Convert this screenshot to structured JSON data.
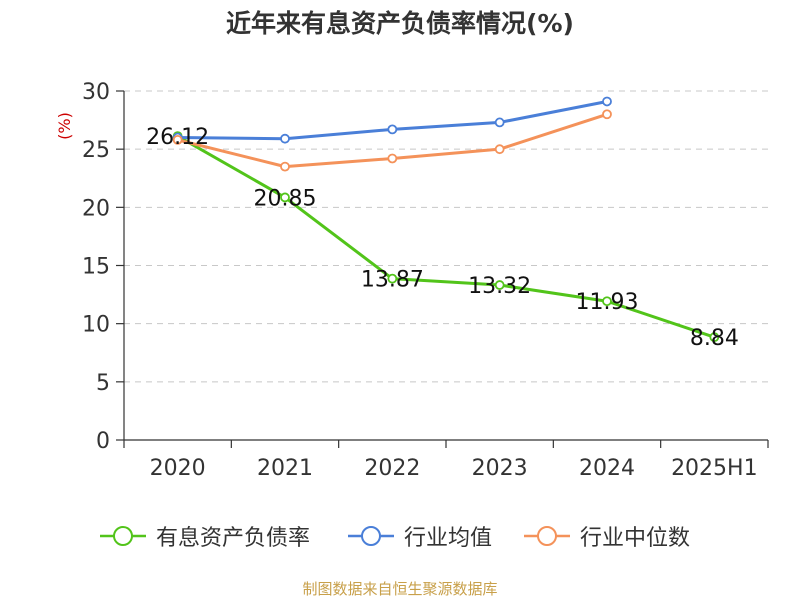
{
  "chart_data": {
    "type": "line",
    "title": "近年来有息资产负债率情况(%)",
    "ylabel": "(%)",
    "xlabel": "",
    "categories": [
      "2020",
      "2021",
      "2022",
      "2023",
      "2024",
      "2025H1"
    ],
    "ylim": [
      0,
      30
    ],
    "yticks": [
      0,
      5,
      10,
      15,
      20,
      25,
      30
    ],
    "grid": true,
    "legend_position": "bottom",
    "series": [
      {
        "name": "有息资产负债率",
        "color": "#52c41a",
        "values": [
          26.12,
          20.85,
          13.87,
          13.32,
          11.93,
          8.84
        ],
        "labels": [
          "26.12",
          "20.85",
          "13.87",
          "13.32",
          "11.93",
          "8.84"
        ]
      },
      {
        "name": "行业均值",
        "color": "#4a7fd8",
        "values": [
          26.0,
          25.9,
          26.7,
          27.3,
          29.1,
          null
        ]
      },
      {
        "name": "行业中位数",
        "color": "#f4925a",
        "values": [
          25.8,
          23.5,
          24.2,
          25.0,
          28.0,
          null
        ]
      }
    ]
  },
  "footer": {
    "text": "制图数据来自恒生聚源数据库",
    "color": "#c8a04a"
  },
  "ylabel_color": "#cc0000"
}
